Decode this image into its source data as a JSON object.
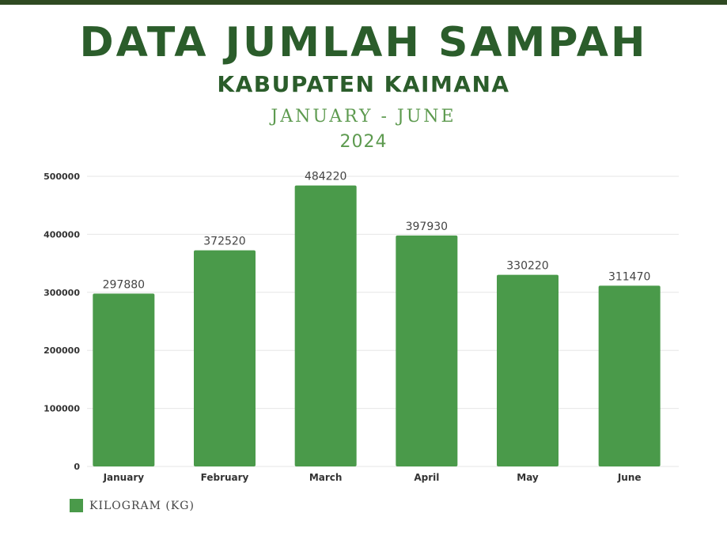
{
  "header": {
    "title": "DATA JUMLAH SAMPAH",
    "subtitle": "KABUPATEN KAIMANA",
    "period": "JANUARY - JUNE",
    "year": "2024"
  },
  "colors": {
    "title": "#2b5d2b",
    "accent": "#5d9a4f",
    "bar": "#4a9a4a",
    "grid": "#e6e6e6"
  },
  "chart_data": {
    "type": "bar",
    "title": "DATA JUMLAH SAMPAH",
    "subtitle": "KABUPATEN KAIMANA",
    "categories": [
      "January",
      "February",
      "March",
      "April",
      "May",
      "June"
    ],
    "series": [
      {
        "name": "KILOGRAM (KG)",
        "values": [
          297880,
          372520,
          484220,
          397930,
          330220,
          311470
        ]
      }
    ],
    "xlabel": "",
    "ylabel": "",
    "ylim": [
      0,
      500000
    ],
    "yticks": [
      0,
      100000,
      200000,
      300000,
      400000,
      500000
    ],
    "grid": true,
    "data_labels": true,
    "legend": "bottom-left"
  }
}
